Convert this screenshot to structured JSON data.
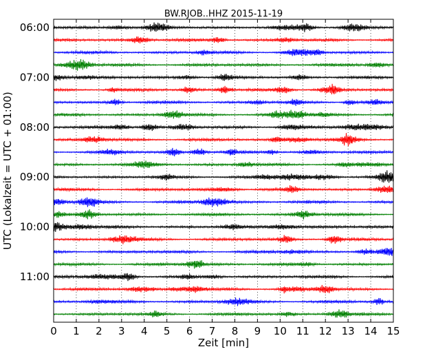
{
  "chart_data": {
    "type": "line",
    "title": "BW.RJOB..HHZ 2015-11-19",
    "xlabel": "Zeit  [min]",
    "ylabel": "UTC (Lokalzeit = UTC + 01:00)",
    "xlim": [
      0,
      15
    ],
    "x_ticks": [
      "0",
      "1",
      "2",
      "3",
      "4",
      "5",
      "6",
      "7",
      "8",
      "9",
      "10",
      "11",
      "12",
      "13",
      "14",
      "15"
    ],
    "y_ticks": [
      "06:00",
      "07:00",
      "08:00",
      "09:00",
      "10:00",
      "11:00"
    ],
    "rows_per_hour": 4,
    "row_minutes": 15,
    "traces": [
      {
        "start": "06:00",
        "color": "#000000"
      },
      {
        "start": "06:15",
        "color": "#ff0000"
      },
      {
        "start": "06:30",
        "color": "#0000ff"
      },
      {
        "start": "06:45",
        "color": "#008000"
      },
      {
        "start": "07:00",
        "color": "#000000"
      },
      {
        "start": "07:15",
        "color": "#ff0000"
      },
      {
        "start": "07:30",
        "color": "#0000ff"
      },
      {
        "start": "07:45",
        "color": "#008000"
      },
      {
        "start": "08:00",
        "color": "#000000"
      },
      {
        "start": "08:15",
        "color": "#ff0000"
      },
      {
        "start": "08:30",
        "color": "#0000ff"
      },
      {
        "start": "08:45",
        "color": "#008000"
      },
      {
        "start": "09:00",
        "color": "#000000"
      },
      {
        "start": "09:15",
        "color": "#ff0000"
      },
      {
        "start": "09:30",
        "color": "#0000ff"
      },
      {
        "start": "09:45",
        "color": "#008000"
      },
      {
        "start": "10:00",
        "color": "#000000"
      },
      {
        "start": "10:15",
        "color": "#ff0000"
      },
      {
        "start": "10:30",
        "color": "#0000ff"
      },
      {
        "start": "10:45",
        "color": "#008000"
      },
      {
        "start": "11:00",
        "color": "#000000"
      },
      {
        "start": "11:15",
        "color": "#ff0000"
      },
      {
        "start": "11:30",
        "color": "#0000ff"
      },
      {
        "start": "11:45",
        "color": "#008000"
      }
    ],
    "grid": "vertical dotted"
  }
}
